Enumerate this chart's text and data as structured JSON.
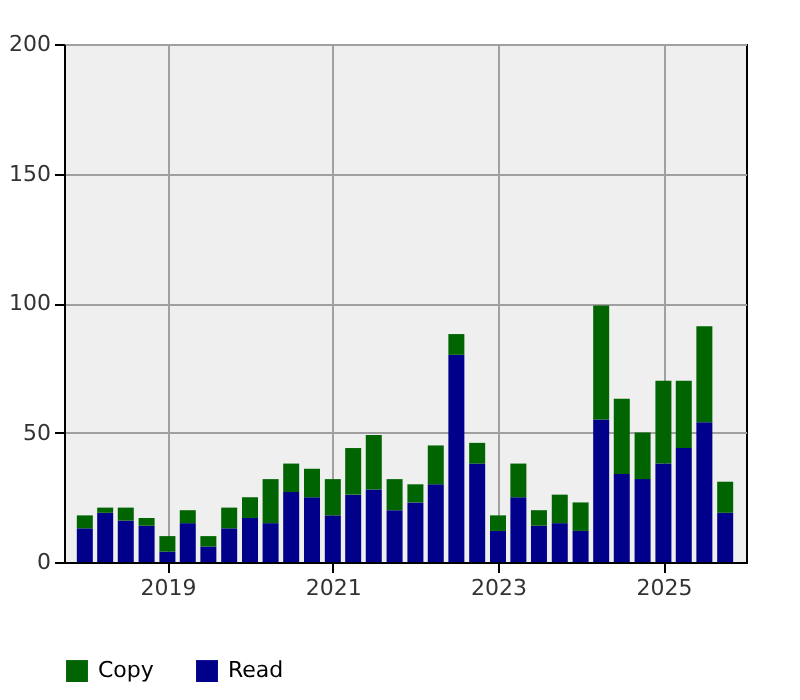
{
  "chart_data": {
    "type": "bar",
    "stacked": true,
    "x": [
      "2018-01",
      "2018-04",
      "2018-07",
      "2018-10",
      "2019-01",
      "2019-04",
      "2019-07",
      "2019-10",
      "2020-01",
      "2020-04",
      "2020-07",
      "2020-10",
      "2021-01",
      "2021-04",
      "2021-07",
      "2021-10",
      "2022-01",
      "2022-04",
      "2022-07",
      "2022-10",
      "2023-01",
      "2023-04",
      "2023-07",
      "2023-10",
      "2024-01",
      "2024-04",
      "2024-07",
      "2024-10",
      "2025-01",
      "2025-04",
      "2025-07",
      "2025-10"
    ],
    "series": [
      {
        "name": "Read",
        "color": "#00008b",
        "values": [
          13,
          19,
          16,
          14,
          4,
          15,
          6,
          13,
          17,
          15,
          27,
          25,
          18,
          26,
          28,
          20,
          23,
          30,
          80,
          38,
          12,
          25,
          14,
          15,
          12,
          55,
          34,
          32,
          38,
          44,
          54,
          19
        ]
      },
      {
        "name": "Copy",
        "color": "#006400",
        "values": [
          5,
          2,
          5,
          3,
          6,
          5,
          4,
          8,
          8,
          17,
          11,
          11,
          14,
          18,
          21,
          12,
          7,
          15,
          8,
          8,
          6,
          13,
          6,
          11,
          11,
          44,
          29,
          18,
          32,
          26,
          37,
          12
        ]
      }
    ],
    "xlim": [
      "2017-10-01",
      "2026-01-01"
    ],
    "xticks": [
      {
        "value": "2019-01-01",
        "label": "2019"
      },
      {
        "value": "2021-01-01",
        "label": "2021"
      },
      {
        "value": "2023-01-01",
        "label": "2023"
      },
      {
        "value": "2025-01-01",
        "label": "2025"
      }
    ],
    "ylim": [
      0,
      200
    ],
    "yticks": [
      0,
      50,
      100,
      150,
      200
    ],
    "grid": true,
    "legend": "bottom"
  }
}
